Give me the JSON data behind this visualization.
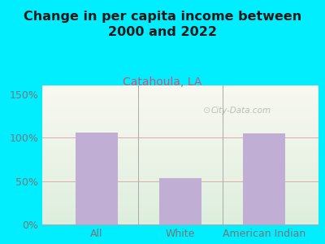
{
  "title": "Change in per capita income between\n2000 and 2022",
  "subtitle": "Catahoula, LA",
  "categories": [
    "All",
    "White",
    "American Indian"
  ],
  "values": [
    106,
    53,
    105
  ],
  "bar_color": "#c0aed4",
  "title_fontsize": 11.5,
  "subtitle_fontsize": 10,
  "subtitle_color": "#cc5577",
  "tick_label_fontsize": 9,
  "ytick_labels": [
    "0%",
    "50%",
    "100%",
    "150%"
  ],
  "ytick_values": [
    0,
    50,
    100,
    150
  ],
  "ylim": [
    0,
    160
  ],
  "background_outer": "#00eeff",
  "plot_bg_bottom": "#ddeedd",
  "plot_bg_top": "#f5f5ee",
  "watermark": "City-Data.com",
  "grid_color": "#ddaaaa",
  "title_color": "#1a1a1a",
  "tick_color": "#777777"
}
